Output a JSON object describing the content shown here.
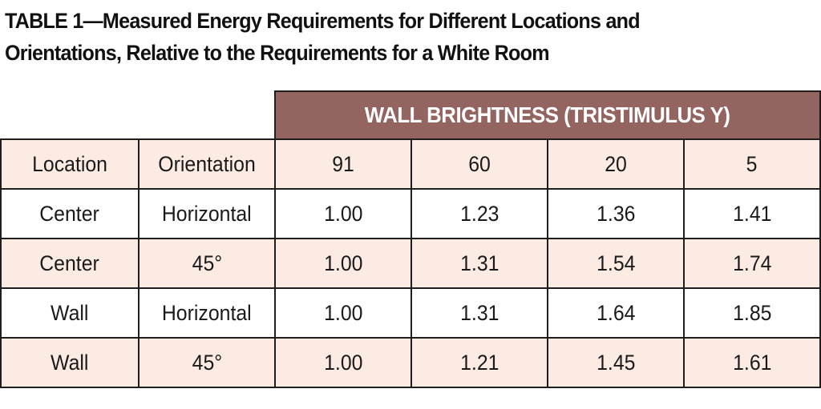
{
  "title": {
    "line1": "TABLE 1—Measured Energy Requirements for Different Locations and",
    "line2": "Orientations, Relative to the Requirements for a White Room"
  },
  "table": {
    "group_header": "WALL BRIGHTNESS (TRISTIMULUS Y)",
    "columns": [
      "Location",
      "Orientation",
      "91",
      "60",
      "20",
      "5"
    ],
    "rows": [
      [
        "Center",
        "Horizontal",
        "1.00",
        "1.23",
        "1.36",
        "1.41"
      ],
      [
        "Center",
        "45°",
        "1.00",
        "1.31",
        "1.54",
        "1.74"
      ],
      [
        "Wall",
        "Horizontal",
        "1.00",
        "1.31",
        "1.64",
        "1.85"
      ],
      [
        "Wall",
        "45°",
        "1.00",
        "1.21",
        "1.45",
        "1.61"
      ]
    ]
  },
  "colors": {
    "group_header_bg": "#946460",
    "shaded_row_bg": "#fcebe2",
    "border": "#1e1e1e"
  }
}
